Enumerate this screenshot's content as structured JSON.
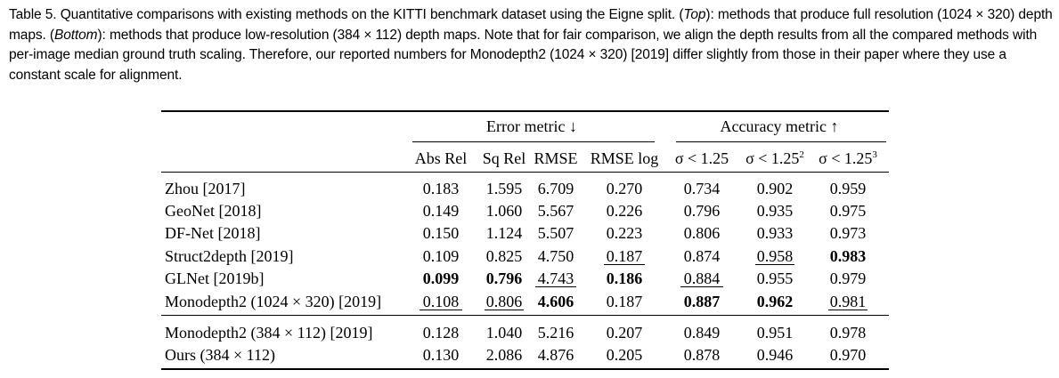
{
  "caption": {
    "prefix": "Table 5.  Quantitative comparisons with existing methods on the KITTI benchmark dataset using the Eigne split. (",
    "top": "Top",
    "mid1": "): methods that produce full resolution (1024 × 320) depth maps. (",
    "bottom": "Bottom",
    "rest": "): methods that produce low-resolution (384 × 112) depth maps. Note that for fair comparison, we align the depth results from all the compared methods with per-image median ground truth scaling. Therefore, our reported numbers for Monodepth2 (1024 × 320) [2019] differ slightly from those in their paper where they use a constant scale for alignment."
  },
  "table": {
    "group_error": "Error metric ↓",
    "group_accuracy": "Accuracy metric ↑",
    "columns": [
      "Abs Rel",
      "Sq Rel",
      "RMSE",
      "RMSE log",
      "σ < 1.25",
      "σ < 1.25",
      "σ < 1.25"
    ],
    "column_sups": [
      "",
      "",
      "",
      "",
      "",
      "2",
      "3"
    ],
    "rows": [
      {
        "method": "Zhou [2017]",
        "values": [
          "0.183",
          "1.595",
          "6.709",
          "0.270",
          "0.734",
          "0.902",
          "0.959"
        ]
      },
      {
        "method": "GeoNet [2018]",
        "values": [
          "0.149",
          "1.060",
          "5.567",
          "0.226",
          "0.796",
          "0.935",
          "0.975"
        ]
      },
      {
        "method": "DF-Net [2018]",
        "values": [
          "0.150",
          "1.124",
          "5.507",
          "0.223",
          "0.806",
          "0.933",
          "0.973"
        ]
      },
      {
        "method": "Struct2depth [2019]",
        "values": [
          "0.109",
          "0.825",
          "4.750",
          "0.187",
          "0.874",
          "0.958",
          "0.983"
        ]
      },
      {
        "method": "GLNet [2019b]",
        "values": [
          "0.099",
          "0.796",
          "4.743",
          "0.186",
          "0.884",
          "0.955",
          "0.979"
        ]
      },
      {
        "method": "Monodepth2 (1024 × 320) [2019]",
        "values": [
          "0.108",
          "0.806",
          "4.606",
          "0.187",
          "0.887",
          "0.962",
          "0.981"
        ]
      },
      {
        "method": "Monodepth2 (384 × 112) [2019]",
        "values": [
          "0.128",
          "1.040",
          "5.216",
          "0.207",
          "0.849",
          "0.951",
          "0.978"
        ]
      },
      {
        "method": "Ours (384 × 112)",
        "values": [
          "0.130",
          "2.086",
          "4.876",
          "0.205",
          "0.878",
          "0.946",
          "0.970"
        ]
      }
    ],
    "bold_cells": [
      [
        4,
        0
      ],
      [
        4,
        1
      ],
      [
        4,
        3
      ],
      [
        5,
        2
      ],
      [
        5,
        4
      ],
      [
        5,
        5
      ],
      [
        3,
        6
      ]
    ],
    "underlined_cells": [
      [
        5,
        0
      ],
      [
        5,
        1
      ],
      [
        4,
        2
      ],
      [
        3,
        3
      ],
      [
        4,
        4
      ],
      [
        3,
        5
      ],
      [
        5,
        6
      ]
    ]
  }
}
